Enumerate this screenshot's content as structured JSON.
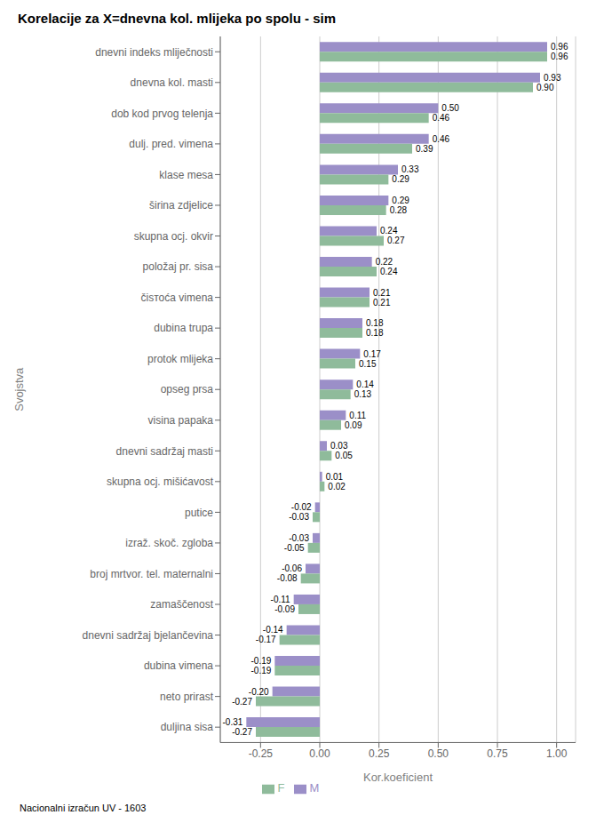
{
  "chart_data": {
    "type": "bar",
    "orientation": "horizontal",
    "title": "Korelacije za X=dnevna kol. mlijeka po spolu - sim",
    "xlabel": "Kor.koeficient",
    "ylabel": "Svojstva",
    "annotations": [
      "Nacionalni izračun UV - 1603"
    ],
    "categories": [
      "dnevni indeks mliječnosti",
      "dnevna kol. masti",
      "dob kod prvog telenja",
      "dulj. pred. vimena",
      "klase mesa",
      "širina zdjelice",
      "skupna ocj. okvir",
      "položaj pr. sisa",
      "čisтоća vimena",
      "dubina trupa",
      "protok mlijeka",
      "opseg prsa",
      "visina papaka",
      "dnevni sadržaj masti",
      "skupna ocj. mišićavost",
      "putice",
      "izraž. skoč. zgloba",
      "broj mrtvor. tel. maternalni",
      "zamaščenost",
      "dnevni sadržaj bjelančevina",
      "dubina vimena",
      "neto prirast",
      "duljina sisa"
    ],
    "series": [
      {
        "name": "M",
        "color": "#9b8fc8",
        "values": [
          0.96,
          0.93,
          0.5,
          0.46,
          0.33,
          0.29,
          0.24,
          0.22,
          0.21,
          0.18,
          0.17,
          0.14,
          0.11,
          0.03,
          0.01,
          -0.02,
          -0.03,
          -0.06,
          -0.11,
          -0.14,
          -0.19,
          -0.2,
          -0.31
        ],
        "value_labels": [
          "0.96",
          "0.93",
          "0.50",
          "0.46",
          "0.33",
          "0.29",
          "0.24",
          "0.22",
          "0.21",
          "0.18",
          "0.17",
          "0.14",
          "0.11",
          "0.03",
          "0.01",
          "-0.02",
          "-0.03",
          "-0.06",
          "-0.11",
          "-0.14",
          "-0.19",
          "-0.20",
          "-0.31"
        ]
      },
      {
        "name": "F",
        "color": "#8fbb9b",
        "values": [
          0.96,
          0.9,
          0.46,
          0.39,
          0.29,
          0.28,
          0.27,
          0.24,
          0.21,
          0.18,
          0.15,
          0.13,
          0.09,
          0.05,
          0.02,
          -0.03,
          -0.05,
          -0.08,
          -0.09,
          -0.17,
          -0.19,
          -0.27,
          -0.27
        ],
        "value_labels": [
          "0.96",
          "0.90",
          "0.46",
          "0.39",
          "0.29",
          "0.28",
          "0.27",
          "0.24",
          "0.21",
          "0.18",
          "0.15",
          "0.13",
          "0.09",
          "0.05",
          "0.02",
          "-0.03",
          "-0.05",
          "-0.08",
          "-0.09",
          "-0.17",
          "-0.19",
          "-0.27",
          "-0.27"
        ]
      }
    ],
    "xlim": [
      -0.42,
      1.08
    ],
    "xticks": [
      -0.25,
      {
        "value": 0.0,
        "label": "0.00"
      },
      0.25,
      {
        "value": 0.5,
        "label": "0.50"
      },
      0.75,
      {
        "value": 1.0,
        "label": "1.00"
      }
    ],
    "grid": true,
    "legend": "bottom",
    "data_labels": true
  }
}
